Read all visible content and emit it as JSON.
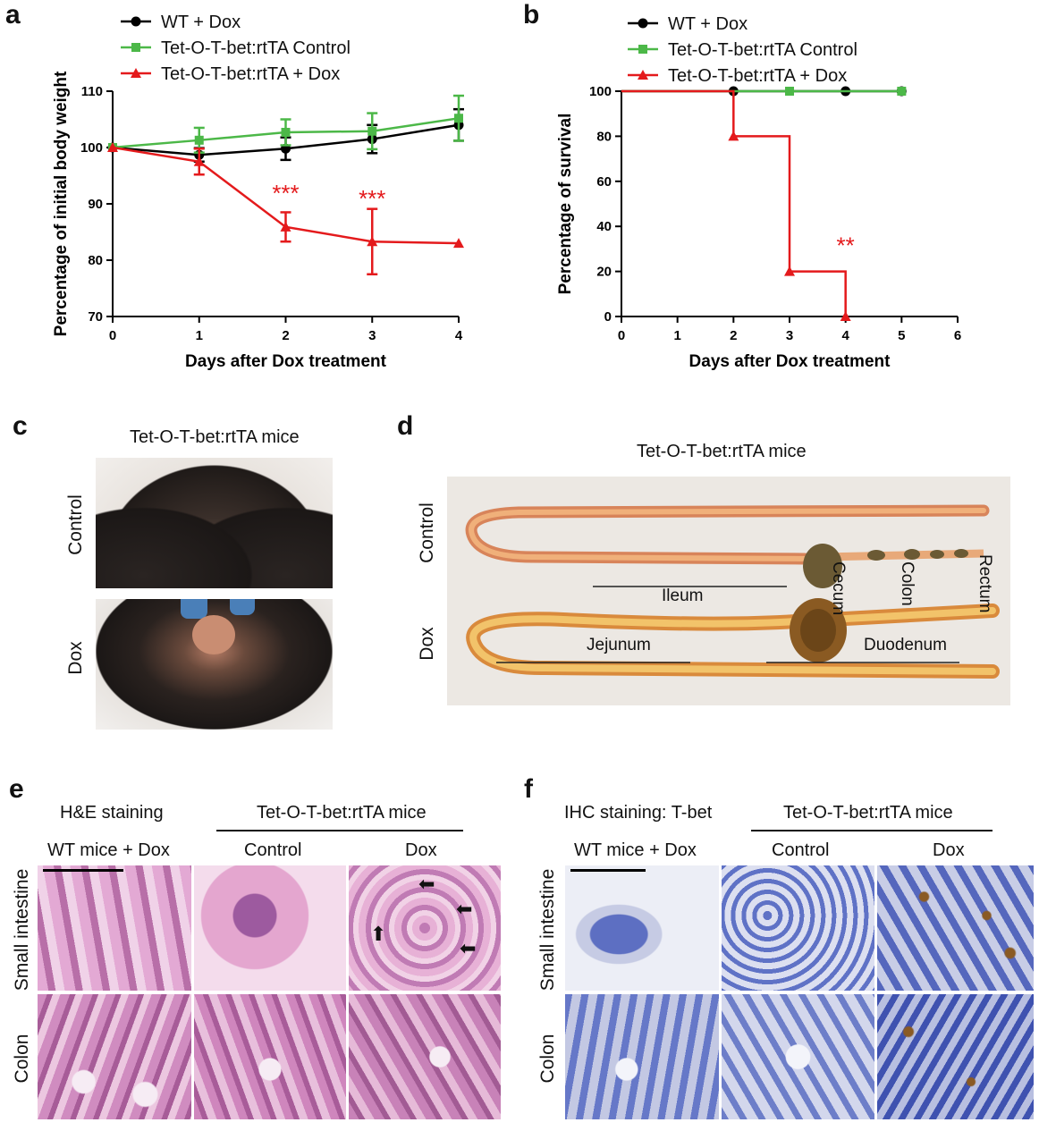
{
  "panels": {
    "a": {
      "letter": "a"
    },
    "b": {
      "letter": "b"
    },
    "c": {
      "letter": "c",
      "title": "Tet-O-T-bet:rtTA mice",
      "row_labels": [
        "Control",
        "Dox"
      ]
    },
    "d": {
      "letter": "d",
      "title": "Tet-O-T-bet:rtTA mice",
      "row_labels": [
        "Control",
        "Dox"
      ],
      "segments": {
        "ileum": "Ileum",
        "cecum": "Cecum",
        "colon": "Colon",
        "rectum": "Rectum",
        "jejunum": "Jejunum",
        "duodenum": "Duodenum"
      }
    },
    "e": {
      "letter": "e",
      "stain": "H&E staining",
      "group": "Tet-O-T-bet:rtTA mice",
      "cols": [
        "WT mice + Dox",
        "Control",
        "Dox"
      ],
      "rows": [
        "Small intestine",
        "Colon"
      ]
    },
    "f": {
      "letter": "f",
      "stain": "IHC staining: T-bet",
      "group": "Tet-O-T-bet:rtTA mice",
      "cols": [
        "WT mice + Dox",
        "Control",
        "Dox"
      ],
      "rows": [
        "Small intestine",
        "Colon"
      ]
    }
  },
  "colors": {
    "wt": "#000000",
    "control": "#4cb848",
    "dox": "#e41a1c"
  },
  "chart_data": [
    {
      "type": "line",
      "panel": "a",
      "xlabel": "Days after Dox treatment",
      "ylabel": "Percentage of initial body weight",
      "xlim": [
        0,
        4
      ],
      "ylim": [
        70,
        110
      ],
      "xticks": [
        0,
        1,
        2,
        3,
        4
      ],
      "yticks": [
        70,
        80,
        90,
        100,
        110
      ],
      "legend": "top-left",
      "series": [
        {
          "name": "WT + Dox",
          "marker": "circle",
          "color": "#000000",
          "x": [
            0,
            1,
            2,
            3,
            4
          ],
          "y": [
            100,
            98.7,
            99.8,
            101.5,
            104
          ],
          "err": [
            0,
            1.2,
            2.0,
            2.5,
            2.8
          ]
        },
        {
          "name": "Tet-O-T-bet:rtTA Control",
          "marker": "square",
          "color": "#4cb848",
          "x": [
            0,
            1,
            2,
            3,
            4
          ],
          "y": [
            100,
            101.3,
            102.7,
            102.9,
            105.2
          ],
          "err": [
            0,
            2.2,
            2.3,
            3.2,
            4.0
          ]
        },
        {
          "name": "Tet-O-T-bet:rtTA + Dox",
          "marker": "triangle",
          "color": "#e41a1c",
          "x": [
            0,
            1,
            2,
            3,
            4
          ],
          "y": [
            100,
            97.5,
            85.9,
            83.3,
            83
          ],
          "err": [
            0,
            2.3,
            2.6,
            5.8,
            0
          ]
        }
      ],
      "annotations": [
        {
          "x": 2,
          "y": 90.5,
          "text": "***"
        },
        {
          "x": 3,
          "y": 89.5,
          "text": "***"
        }
      ]
    },
    {
      "type": "line",
      "panel": "b",
      "step": true,
      "xlabel": "Days after Dox treatment",
      "ylabel": "Percentage of survival",
      "xlim": [
        0,
        6
      ],
      "ylim": [
        0,
        100
      ],
      "xticks": [
        0,
        1,
        2,
        3,
        4,
        5,
        6
      ],
      "yticks": [
        0,
        20,
        40,
        60,
        80,
        100
      ],
      "legend": "top-left",
      "series": [
        {
          "name": "WT + Dox",
          "marker": "circle",
          "color": "#000000",
          "x": [
            0,
            5
          ],
          "y": [
            100,
            100
          ],
          "points": [
            [
              2,
              100
            ],
            [
              4,
              100
            ],
            [
              5,
              100
            ]
          ]
        },
        {
          "name": "Tet-O-T-bet:rtTA Control",
          "marker": "square",
          "color": "#4cb848",
          "x": [
            0,
            5
          ],
          "y": [
            100,
            100
          ],
          "points": [
            [
              3,
              100
            ],
            [
              5,
              100
            ]
          ]
        },
        {
          "name": "Tet-O-T-bet:rtTA + Dox",
          "marker": "triangle",
          "color": "#e41a1c",
          "x": [
            0,
            2,
            3,
            4
          ],
          "y": [
            100,
            80,
            20,
            0
          ],
          "points": [
            [
              2,
              80
            ],
            [
              3,
              20
            ],
            [
              4,
              0
            ]
          ]
        }
      ],
      "annotations": [
        {
          "x": 4,
          "y": 28,
          "text": "**"
        }
      ]
    }
  ]
}
